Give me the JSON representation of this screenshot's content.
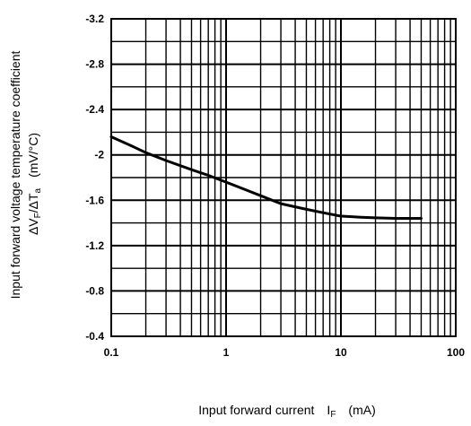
{
  "chart_data": {
    "type": "line",
    "x_scale": "log",
    "xlim": [
      0.1,
      100
    ],
    "ylim": [
      -0.4,
      -3.2
    ],
    "y_reversed": true,
    "grid": true,
    "x_ticks": [
      "0.1",
      "1",
      "10",
      "100"
    ],
    "y_ticks": [
      "-3.2",
      "-2.8",
      "-2.4",
      "-2",
      "-1.6",
      "-1.2",
      "-0.8",
      "-0.4"
    ],
    "ylabel_line1": "Input forward voltage temperature coefficient",
    "ylabel_line2": {
      "delta_v": "ΔV",
      "v_sub": "F",
      "slash_delta_t": "/ΔT",
      "t_sub": "a",
      "units": "(mV/°C)"
    },
    "xlabel": {
      "text": "Input forward current",
      "symbol": "I",
      "symbol_sub": "F",
      "units": "(mA)"
    },
    "series": [
      {
        "x": [
          0.1,
          0.15,
          0.2,
          0.3,
          0.5,
          0.7,
          1,
          1.5,
          2,
          3,
          5,
          7,
          10,
          15,
          20,
          30,
          50
        ],
        "y": [
          -2.16,
          -2.08,
          -2.02,
          -1.95,
          -1.87,
          -1.82,
          -1.76,
          -1.69,
          -1.64,
          -1.57,
          -1.52,
          -1.49,
          -1.46,
          -1.45,
          -1.445,
          -1.44,
          -1.44
        ]
      }
    ]
  }
}
